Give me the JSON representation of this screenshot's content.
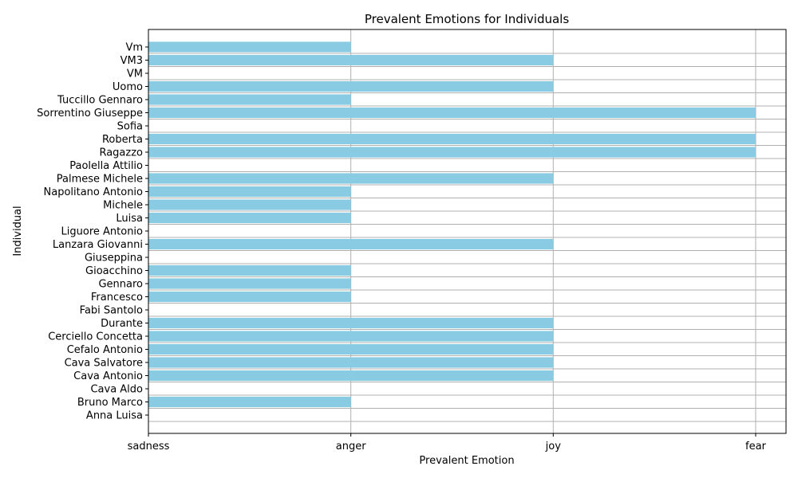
{
  "chart_data": {
    "type": "bar",
    "orientation": "horizontal",
    "title": "Prevalent Emotions for Individuals",
    "xlabel": "Prevalent Emotion",
    "ylabel": "Individual",
    "x_tick_labels": [
      "sadness",
      "anger",
      "joy",
      "fear"
    ],
    "xlim": [
      0,
      3.15
    ],
    "grid": true,
    "bar_color": "#89cbe3",
    "categories": [
      "Anna Luisa",
      "Bruno Marco",
      "Cava Aldo",
      "Cava Antonio",
      "Cava Salvatore",
      "Cefalo Antonio",
      "Cerciello Concetta",
      "Durante",
      "Fabi Santolo",
      "Francesco",
      "Gennaro",
      "Gioacchino",
      "Giuseppina",
      "Lanzara Giovanni",
      "Liguore Antonio",
      "Luisa",
      "Michele",
      "Napolitano Antonio",
      "Palmese Michele",
      "Paolella Attilio",
      "Ragazzo",
      "Roberta",
      "Sofia",
      "Sorrentino Giuseppe",
      "Tuccillo Gennaro",
      "Uomo",
      "VM",
      "VM3",
      "Vm"
    ],
    "values": [
      "sadness",
      "anger",
      "sadness",
      "joy",
      "joy",
      "joy",
      "joy",
      "joy",
      "sadness",
      "anger",
      "anger",
      "anger",
      "sadness",
      "joy",
      "sadness",
      "anger",
      "anger",
      "anger",
      "joy",
      "sadness",
      "fear",
      "fear",
      "sadness",
      "fear",
      "anger",
      "joy",
      "sadness",
      "joy",
      "anger"
    ]
  }
}
